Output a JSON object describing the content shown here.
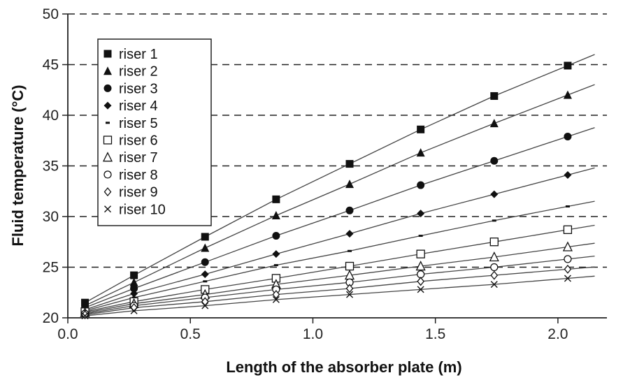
{
  "chart_data": {
    "type": "line",
    "title": "",
    "xlabel": "Length of the absorber plate (m)",
    "ylabel": "Fluid temperature (°C)",
    "xlim": [
      0.0,
      2.2
    ],
    "ylim": [
      20,
      50
    ],
    "xticks": [
      "0.0",
      "0.5",
      "1.0",
      "1.5",
      "2.0"
    ],
    "yticks": [
      "20",
      "25",
      "30",
      "35",
      "40",
      "45",
      "50"
    ],
    "grid": "horizontal-dashed",
    "legend_position": "top-left",
    "x": [
      0.07,
      0.27,
      0.56,
      0.85,
      1.15,
      1.44,
      1.74,
      2.04
    ],
    "series": [
      {
        "name": "riser 1",
        "marker": "filled-square",
        "values": [
          21.5,
          24.2,
          28.0,
          31.7,
          35.2,
          38.6,
          41.9,
          44.9
        ]
      },
      {
        "name": "riser 2",
        "marker": "filled-triangle",
        "values": [
          21.2,
          23.5,
          26.9,
          30.1,
          33.2,
          36.3,
          39.2,
          42.0
        ]
      },
      {
        "name": "riser 3",
        "marker": "filled-circle",
        "values": [
          21.0,
          22.9,
          25.5,
          28.1,
          30.6,
          33.1,
          35.5,
          37.9
        ]
      },
      {
        "name": "riser 4",
        "marker": "filled-diamond",
        "values": [
          20.8,
          22.4,
          24.3,
          26.3,
          28.3,
          30.3,
          32.2,
          34.1
        ]
      },
      {
        "name": "riser 5",
        "marker": "dash",
        "values": [
          20.7,
          22.0,
          23.6,
          25.2,
          26.6,
          28.1,
          29.6,
          31.0
        ]
      },
      {
        "name": "riser 6",
        "marker": "open-square",
        "values": [
          20.6,
          21.6,
          22.8,
          23.9,
          25.1,
          26.3,
          27.5,
          28.7
        ]
      },
      {
        "name": "riser 7",
        "marker": "open-triangle",
        "values": [
          20.5,
          21.4,
          22.3,
          23.3,
          24.2,
          25.1,
          26.0,
          27.0
        ]
      },
      {
        "name": "riser 8",
        "marker": "open-circle",
        "values": [
          20.4,
          21.2,
          22.0,
          22.8,
          23.5,
          24.3,
          25.0,
          25.8
        ]
      },
      {
        "name": "riser 9",
        "marker": "open-diamond",
        "values": [
          20.3,
          21.0,
          21.6,
          22.3,
          22.9,
          23.6,
          24.2,
          24.8
        ]
      },
      {
        "name": "riser 10",
        "marker": "x",
        "values": [
          20.2,
          20.7,
          21.2,
          21.8,
          22.3,
          22.8,
          23.3,
          23.9
        ]
      }
    ]
  }
}
